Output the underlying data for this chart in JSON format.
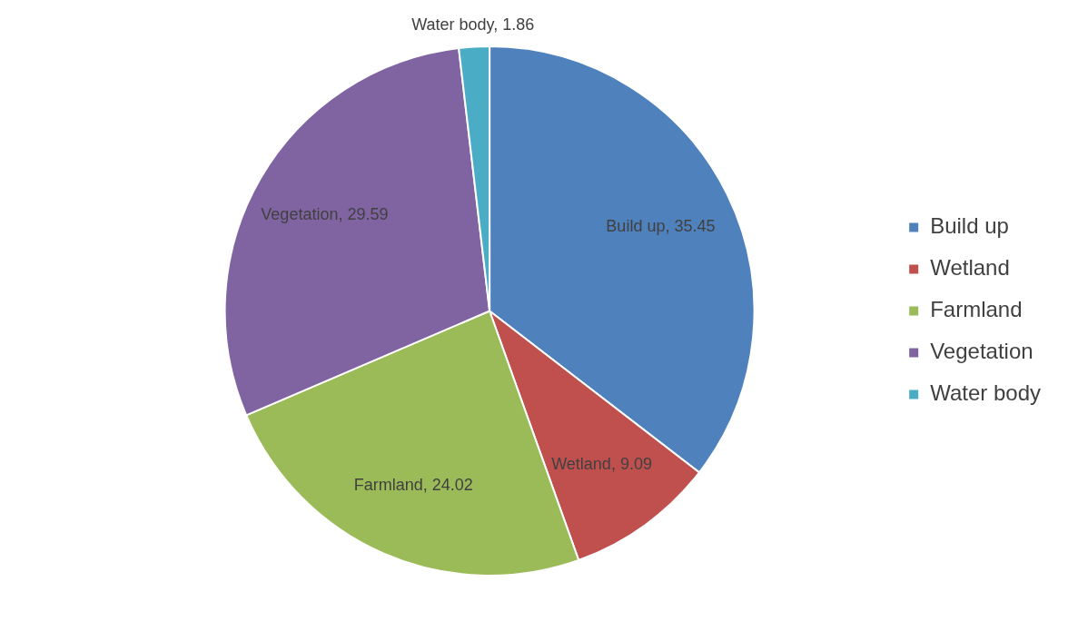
{
  "chart_data": {
    "type": "pie",
    "categories": [
      "Build up",
      "Wetland",
      "Farmland",
      "Vegetation",
      "Water body"
    ],
    "values": [
      35.45,
      9.09,
      24.02,
      29.59,
      1.86
    ],
    "colors": [
      "#4f81bd",
      "#c0504d",
      "#9bbb59",
      "#8064a2",
      "#4bacc6"
    ],
    "value_labels": [
      "Build up, 35.45",
      "Wetland, 9.09",
      "Farmland, 24.02",
      "Vegetation, 29.59",
      "Water body, 1.86"
    ],
    "legend": "right"
  }
}
